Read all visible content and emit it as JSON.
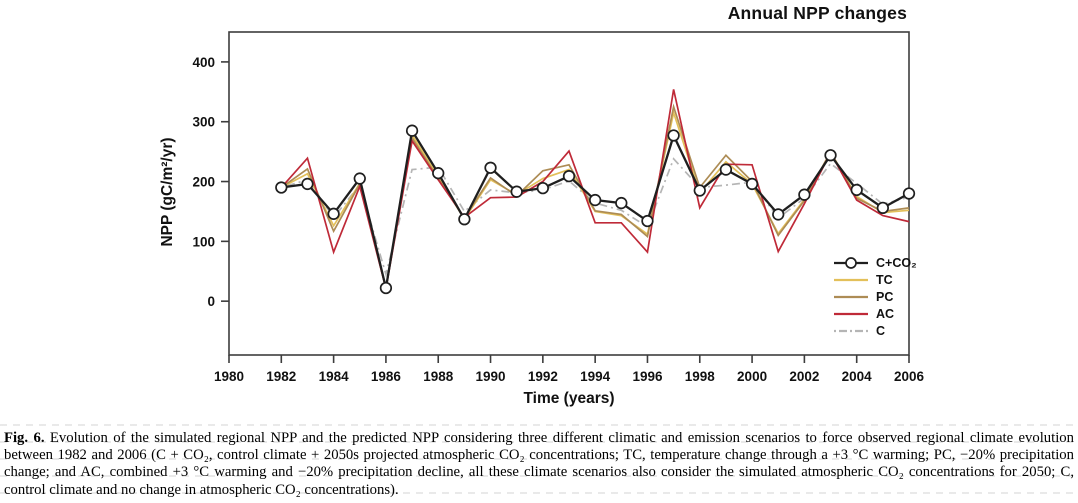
{
  "chart_data": {
    "type": "line",
    "title": "Annual NPP changes",
    "xlabel": "Time (years)",
    "ylabel": "NPP (gC/m²/yr)",
    "xlim": [
      1980,
      2006
    ],
    "ylim": [
      -90,
      450
    ],
    "x_ticks": [
      1980,
      1982,
      1984,
      1986,
      1988,
      1990,
      1992,
      1994,
      1996,
      1998,
      2000,
      2002,
      2004,
      2006
    ],
    "y_ticks": [
      0,
      100,
      200,
      300,
      400
    ],
    "grid": false,
    "legend_position": "lower right inside plot",
    "axis_color": "#3d3d3d",
    "x": [
      1982,
      1983,
      1984,
      1985,
      1986,
      1987,
      1988,
      1989,
      1990,
      1991,
      1992,
      1993,
      1994,
      1995,
      1996,
      1997,
      1998,
      1999,
      2000,
      2001,
      2002,
      2003,
      2004,
      2005,
      2006
    ],
    "series": [
      {
        "name": "C+CO₂",
        "color": "#1f1f1f",
        "style": "solid-circles",
        "values": [
          190,
          196,
          146,
          205,
          22,
          285,
          214,
          137,
          223,
          183,
          189,
          209,
          169,
          164,
          134,
          277,
          185,
          220,
          196,
          145,
          178,
          244,
          186,
          156,
          180
        ]
      },
      {
        "name": "TC",
        "color": "#e3c05a",
        "style": "solid",
        "values": [
          190,
          213,
          126,
          197,
          22,
          278,
          208,
          137,
          203,
          178,
          205,
          220,
          150,
          143,
          112,
          315,
          181,
          233,
          196,
          113,
          170,
          249,
          175,
          148,
          152
        ]
      },
      {
        "name": "PC",
        "color": "#ad8c55",
        "style": "solid",
        "values": [
          190,
          221,
          117,
          196,
          22,
          273,
          205,
          139,
          206,
          176,
          218,
          228,
          151,
          145,
          108,
          325,
          190,
          244,
          200,
          110,
          168,
          250,
          172,
          150,
          156
        ]
      },
      {
        "name": "AC",
        "color": "#bf2a38",
        "style": "solid",
        "values": [
          190,
          239,
          82,
          192,
          21,
          268,
          203,
          140,
          173,
          174,
          200,
          251,
          131,
          131,
          82,
          354,
          156,
          229,
          228,
          83,
          163,
          248,
          169,
          143,
          133
        ]
      },
      {
        "name": "C",
        "color": "#b5b5b5",
        "style": "dash-dot",
        "values": [
          190,
          203,
          140,
          194,
          45,
          220,
          224,
          150,
          186,
          181,
          186,
          201,
          164,
          152,
          124,
          238,
          190,
          194,
          199,
          139,
          172,
          230,
          197,
          162,
          174
        ]
      }
    ]
  },
  "caption": {
    "fig_label": "Fig. 6.",
    "text": "Evolution of the simulated regional NPP and the predicted NPP considering three different climatic and emission scenarios to force observed regional climate evolution between 1982 and 2006 (C + CO₂, control climate + 2050s projected atmospheric CO₂ concentrations; TC, temperature change through a +3 °C warming; PC, −20% precipitation change; and AC, combined +3 °C warming and −20% precipitation decline, all these climate scenarios also consider the simulated atmospheric CO₂ concentrations for 2050; C, control climate and no change in atmospheric CO₂ concentrations)."
  }
}
